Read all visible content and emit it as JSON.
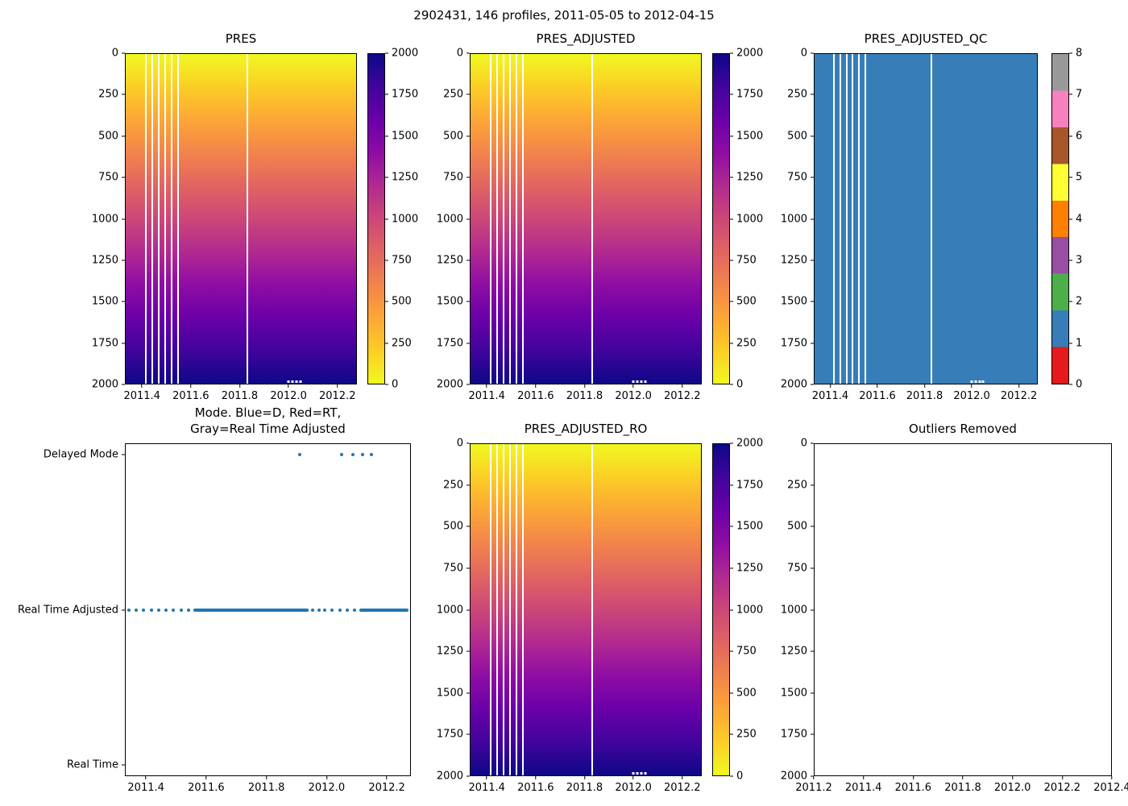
{
  "figure": {
    "suptitle": "2902431, 146 profiles, 2011-05-05 to 2012-04-15",
    "background": "#ffffff"
  },
  "palette": {
    "plasma_r": [
      "#f0f921",
      "#fcce25",
      "#fca636",
      "#f2844b",
      "#e16462",
      "#cc4778",
      "#b12a90",
      "#8f0da4",
      "#6a00a8",
      "#41049d",
      "#0d0887"
    ],
    "qc_flag_colors": [
      "#e41a1c",
      "#377eb8",
      "#4daf4a",
      "#984ea3",
      "#ff7f00",
      "#ffff33",
      "#a65628",
      "#f781bf",
      "#999999"
    ],
    "scatter_blue": "#1f77b4"
  },
  "chart_data": [
    {
      "type": "heatmap",
      "title": "PRES",
      "colormap": "plasma_r",
      "vmin": 0,
      "vmax": 2000,
      "xlim": [
        2011.33,
        2012.28
      ],
      "ytop": 0,
      "ybottom": 2000,
      "xticks": [
        {
          "v": 2011.4,
          "l": "2011.4"
        },
        {
          "v": 2011.6,
          "l": "2011.6"
        },
        {
          "v": 2011.8,
          "l": "2011.8"
        },
        {
          "v": 2012.0,
          "l": "2012.0"
        },
        {
          "v": 2012.2,
          "l": "2012.2"
        }
      ],
      "yticks": [
        {
          "v": 0,
          "l": "0"
        },
        {
          "v": 250,
          "l": "250"
        },
        {
          "v": 500,
          "l": "500"
        },
        {
          "v": 750,
          "l": "750"
        },
        {
          "v": 1000,
          "l": "1000"
        },
        {
          "v": 1250,
          "l": "1250"
        },
        {
          "v": 1500,
          "l": "1500"
        },
        {
          "v": 1750,
          "l": "1750"
        },
        {
          "v": 2000,
          "l": "2000"
        }
      ],
      "gap_columns_x": [
        2011.413,
        2011.44,
        2011.466,
        2011.493,
        2011.519,
        2011.546,
        2011.83
      ],
      "bottom_gaps_x": [
        2012.0,
        2012.017,
        2012.034,
        2012.051
      ],
      "colorbar": {
        "min": 0,
        "max": 2000,
        "ticks": [
          {
            "v": 2000,
            "l": "2000"
          },
          {
            "v": 1750,
            "l": "1750"
          },
          {
            "v": 1500,
            "l": "1500"
          },
          {
            "v": 1250,
            "l": "1250"
          },
          {
            "v": 1000,
            "l": "1000"
          },
          {
            "v": 750,
            "l": "750"
          },
          {
            "v": 500,
            "l": "500"
          },
          {
            "v": 250,
            "l": "250"
          },
          {
            "v": 0,
            "l": "0"
          }
        ]
      }
    },
    {
      "type": "heatmap",
      "title": "PRES_ADJUSTED",
      "colormap": "plasma_r",
      "vmin": 0,
      "vmax": 2000,
      "xlim": [
        2011.33,
        2012.28
      ],
      "ytop": 0,
      "ybottom": 2000,
      "xticks": [
        {
          "v": 2011.4,
          "l": "2011.4"
        },
        {
          "v": 2011.6,
          "l": "2011.6"
        },
        {
          "v": 2011.8,
          "l": "2011.8"
        },
        {
          "v": 2012.0,
          "l": "2012.0"
        },
        {
          "v": 2012.2,
          "l": "2012.2"
        }
      ],
      "yticks": [
        {
          "v": 0,
          "l": "0"
        },
        {
          "v": 250,
          "l": "250"
        },
        {
          "v": 500,
          "l": "500"
        },
        {
          "v": 750,
          "l": "750"
        },
        {
          "v": 1000,
          "l": "1000"
        },
        {
          "v": 1250,
          "l": "1250"
        },
        {
          "v": 1500,
          "l": "1500"
        },
        {
          "v": 1750,
          "l": "1750"
        },
        {
          "v": 2000,
          "l": "2000"
        }
      ],
      "gap_columns_x": [
        2011.413,
        2011.44,
        2011.466,
        2011.493,
        2011.519,
        2011.546,
        2011.83
      ],
      "bottom_gaps_x": [
        2012.0,
        2012.017,
        2012.034,
        2012.051
      ],
      "colorbar": {
        "min": 0,
        "max": 2000,
        "ticks": [
          {
            "v": 2000,
            "l": "2000"
          },
          {
            "v": 1750,
            "l": "1750"
          },
          {
            "v": 1500,
            "l": "1500"
          },
          {
            "v": 1250,
            "l": "1250"
          },
          {
            "v": 1000,
            "l": "1000"
          },
          {
            "v": 750,
            "l": "750"
          },
          {
            "v": 500,
            "l": "500"
          },
          {
            "v": 250,
            "l": "250"
          },
          {
            "v": 0,
            "l": "0"
          }
        ]
      }
    },
    {
      "type": "heatmap",
      "title": "PRES_ADJUSTED_QC",
      "field_color": "#377eb8",
      "constant_flag_value": 1,
      "xlim": [
        2011.33,
        2012.28
      ],
      "ytop": 0,
      "ybottom": 2000,
      "xticks": [
        {
          "v": 2011.4,
          "l": "2011.4"
        },
        {
          "v": 2011.6,
          "l": "2011.6"
        },
        {
          "v": 2011.8,
          "l": "2011.8"
        },
        {
          "v": 2012.0,
          "l": "2012.0"
        },
        {
          "v": 2012.2,
          "l": "2012.2"
        }
      ],
      "yticks": [
        {
          "v": 0,
          "l": "0"
        },
        {
          "v": 250,
          "l": "250"
        },
        {
          "v": 500,
          "l": "500"
        },
        {
          "v": 750,
          "l": "750"
        },
        {
          "v": 1000,
          "l": "1000"
        },
        {
          "v": 1250,
          "l": "1250"
        },
        {
          "v": 1500,
          "l": "1500"
        },
        {
          "v": 1750,
          "l": "1750"
        },
        {
          "v": 2000,
          "l": "2000"
        }
      ],
      "gap_columns_x": [
        2011.413,
        2011.44,
        2011.466,
        2011.493,
        2011.519,
        2011.546,
        2011.83
      ],
      "bottom_gaps_x": [
        2012.0,
        2012.017,
        2012.034,
        2012.051
      ],
      "colorbar": {
        "min": 0,
        "max": 8,
        "discrete_colors": [
          "#e41a1c",
          "#377eb8",
          "#4daf4a",
          "#984ea3",
          "#ff7f00",
          "#ffff33",
          "#a65628",
          "#f781bf",
          "#999999"
        ],
        "ticks": [
          {
            "v": 8,
            "l": "8"
          },
          {
            "v": 7,
            "l": "7"
          },
          {
            "v": 6,
            "l": "6"
          },
          {
            "v": 5,
            "l": "5"
          },
          {
            "v": 4,
            "l": "4"
          },
          {
            "v": 3,
            "l": "3"
          },
          {
            "v": 2,
            "l": "2"
          },
          {
            "v": 1,
            "l": "1"
          },
          {
            "v": 0,
            "l": "0"
          }
        ]
      }
    },
    {
      "type": "scatter",
      "title_lines": [
        "Mode. Blue=D, Red=RT,",
        "Gray=Real Time Adjusted"
      ],
      "xlim": [
        2011.33,
        2012.28
      ],
      "ytop": 2.07,
      "ybottom": -0.07,
      "xticks": [
        {
          "v": 2011.4,
          "l": "2011.4"
        },
        {
          "v": 2011.6,
          "l": "2011.6"
        },
        {
          "v": 2011.8,
          "l": "2011.8"
        },
        {
          "v": 2012.0,
          "l": "2012.0"
        },
        {
          "v": 2012.2,
          "l": "2012.2"
        }
      ],
      "yticks": [
        {
          "v": 2,
          "l": "Delayed Mode"
        },
        {
          "v": 1,
          "l": "Real Time Adjusted"
        },
        {
          "v": 0,
          "l": "Real Time"
        }
      ],
      "dot_color": "#1f77b4",
      "delayed_mode_dots_x": [
        2011.91,
        2012.05,
        2012.09,
        2012.12,
        2012.15
      ],
      "rta_dots_x": [
        2011.34,
        2011.365,
        2011.39,
        2011.415,
        2011.44,
        2011.465,
        2011.49,
        2011.515,
        2011.54
      ],
      "rta_dash_dots_x": [
        2011.955,
        2011.975,
        2011.995,
        2012.02,
        2012.045,
        2012.07,
        2012.095
      ],
      "rta_segments_x": [
        [
          2011.555,
          2011.94
        ],
        [
          2012.11,
          2012.275
        ]
      ]
    },
    {
      "type": "heatmap",
      "title": "PRES_ADJUSTED_RO",
      "colormap": "plasma_r",
      "vmin": 0,
      "vmax": 2000,
      "xlim": [
        2011.33,
        2012.28
      ],
      "ytop": 0,
      "ybottom": 2000,
      "xticks": [
        {
          "v": 2011.4,
          "l": "2011.4"
        },
        {
          "v": 2011.6,
          "l": "2011.6"
        },
        {
          "v": 2011.8,
          "l": "2011.8"
        },
        {
          "v": 2012.0,
          "l": "2012.0"
        },
        {
          "v": 2012.2,
          "l": "2012.2"
        }
      ],
      "yticks": [
        {
          "v": 0,
          "l": "0"
        },
        {
          "v": 250,
          "l": "250"
        },
        {
          "v": 500,
          "l": "500"
        },
        {
          "v": 750,
          "l": "750"
        },
        {
          "v": 1000,
          "l": "1000"
        },
        {
          "v": 1250,
          "l": "1250"
        },
        {
          "v": 1500,
          "l": "1500"
        },
        {
          "v": 1750,
          "l": "1750"
        },
        {
          "v": 2000,
          "l": "2000"
        }
      ],
      "gap_columns_x": [
        2011.413,
        2011.44,
        2011.466,
        2011.493,
        2011.519,
        2011.546,
        2011.83
      ],
      "bottom_gaps_x": [
        2012.0,
        2012.017,
        2012.034,
        2012.051
      ],
      "colorbar": {
        "min": 0,
        "max": 2000,
        "ticks": [
          {
            "v": 2000,
            "l": "2000"
          },
          {
            "v": 1750,
            "l": "1750"
          },
          {
            "v": 1500,
            "l": "1500"
          },
          {
            "v": 1250,
            "l": "1250"
          },
          {
            "v": 1000,
            "l": "1000"
          },
          {
            "v": 750,
            "l": "750"
          },
          {
            "v": 500,
            "l": "500"
          },
          {
            "v": 250,
            "l": "250"
          },
          {
            "v": 0,
            "l": "0"
          }
        ]
      }
    },
    {
      "type": "empty",
      "title": "Outliers Removed",
      "xlim": [
        2011.2,
        2012.4
      ],
      "ytop": 0,
      "ybottom": 2000,
      "xticks": [
        {
          "v": 2011.2,
          "l": "2011.2"
        },
        {
          "v": 2011.4,
          "l": "2011.4"
        },
        {
          "v": 2011.6,
          "l": "2011.6"
        },
        {
          "v": 2011.8,
          "l": "2011.8"
        },
        {
          "v": 2012.0,
          "l": "2012.0"
        },
        {
          "v": 2012.2,
          "l": "2012.2"
        },
        {
          "v": 2012.4,
          "l": "2012.4"
        }
      ],
      "yticks": [
        {
          "v": 0,
          "l": "0"
        },
        {
          "v": 250,
          "l": "250"
        },
        {
          "v": 500,
          "l": "500"
        },
        {
          "v": 750,
          "l": "750"
        },
        {
          "v": 1000,
          "l": "1000"
        },
        {
          "v": 1250,
          "l": "1250"
        },
        {
          "v": 1500,
          "l": "1500"
        },
        {
          "v": 1750,
          "l": "1750"
        },
        {
          "v": 2000,
          "l": "2000"
        }
      ]
    }
  ]
}
